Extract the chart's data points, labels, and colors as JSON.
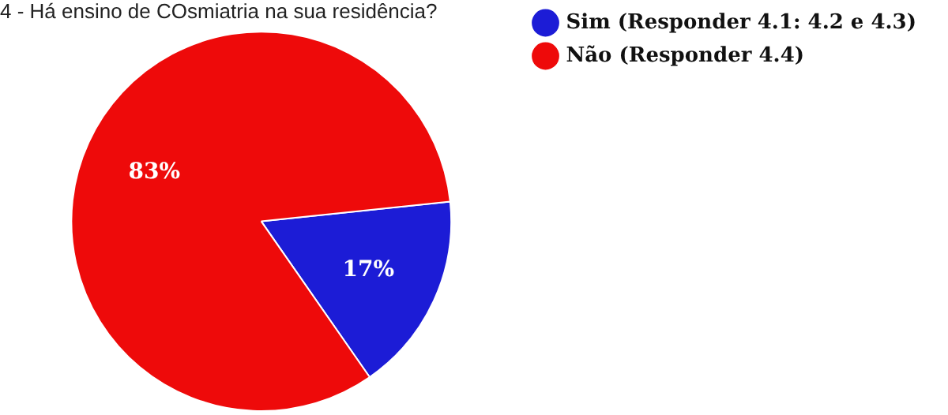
{
  "chart_data": {
    "type": "pie",
    "title": "4 - Há ensino de COsmiatria na sua residência?",
    "categories": [
      "Sim (Responder 4.1: 4.2 e 4.3)",
      "Não (Responder 4.4)"
    ],
    "values": [
      17,
      83
    ],
    "colors": [
      "#1c1cd6",
      "#ee0a0a"
    ],
    "value_labels": [
      "17%",
      "83%"
    ],
    "legend": "right"
  }
}
